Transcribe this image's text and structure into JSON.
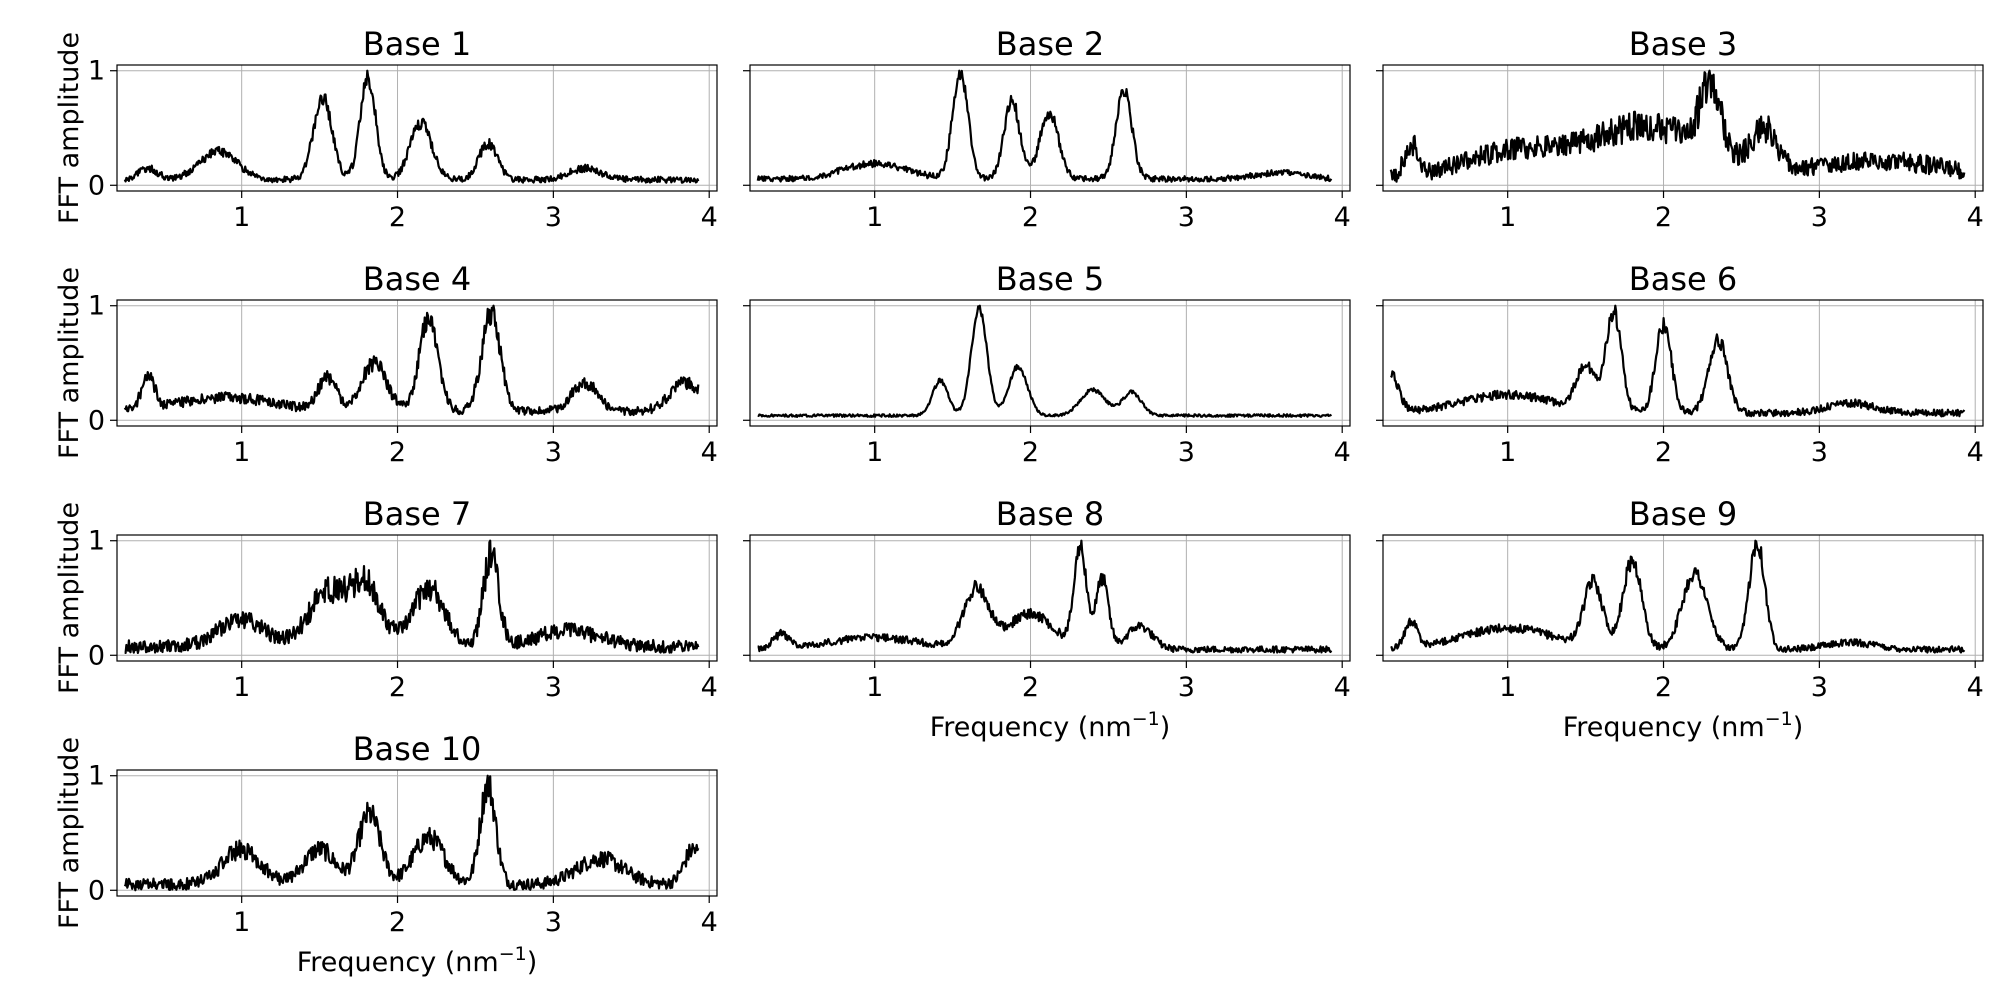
{
  "figure": {
    "x_axis_label_prefix": "Frequency (nm",
    "x_axis_label_sup": "−1",
    "x_axis_label_suffix": ")",
    "y_axis_label": "FFT amplitude"
  },
  "chart_data": [
    {
      "type": "line",
      "title": "Base 1",
      "xlim": [
        0.2,
        4.05
      ],
      "ylim": [
        -0.05,
        1.05
      ],
      "xticks": [
        1,
        2,
        3,
        4
      ],
      "yticks": [
        0,
        1
      ],
      "grid": true,
      "show_ylabel": true,
      "show_xlabel": false,
      "peaks": [
        [
          0.4,
          0.1,
          0.06
        ],
        [
          0.85,
          0.25,
          0.12
        ],
        [
          1.52,
          0.72,
          0.06
        ],
        [
          1.81,
          0.9,
          0.05
        ],
        [
          2.15,
          0.5,
          0.07
        ],
        [
          2.58,
          0.32,
          0.06
        ],
        [
          3.2,
          0.1,
          0.1
        ]
      ],
      "baseline": 0.05,
      "noise": 0.12,
      "seed": 1
    },
    {
      "type": "line",
      "title": "Base 2",
      "xlim": [
        0.2,
        4.05
      ],
      "ylim": [
        -0.05,
        1.05
      ],
      "xticks": [
        1,
        2,
        3,
        4
      ],
      "yticks": [
        0,
        1
      ],
      "grid": true,
      "show_ylabel": false,
      "show_xlabel": false,
      "peaks": [
        [
          1.0,
          0.12,
          0.2
        ],
        [
          1.55,
          0.82,
          0.05
        ],
        [
          1.88,
          0.62,
          0.05
        ],
        [
          2.12,
          0.52,
          0.06
        ],
        [
          2.6,
          0.7,
          0.05
        ],
        [
          3.6,
          0.05,
          0.15
        ]
      ],
      "baseline": 0.05,
      "noise": 0.1,
      "seed": 2
    },
    {
      "type": "line",
      "title": "Base 3",
      "xlim": [
        0.2,
        4.05
      ],
      "ylim": [
        -0.05,
        1.05
      ],
      "xticks": [
        1,
        2,
        3,
        4
      ],
      "yticks": [
        0,
        1
      ],
      "grid": true,
      "show_ylabel": false,
      "show_xlabel": false,
      "peaks": [
        [
          0.38,
          0.35,
          0.04
        ],
        [
          1.0,
          0.25,
          0.3
        ],
        [
          1.9,
          0.55,
          0.4
        ],
        [
          2.3,
          0.75,
          0.06
        ],
        [
          2.65,
          0.4,
          0.08
        ],
        [
          3.4,
          0.18,
          0.4
        ]
      ],
      "baseline": 0.08,
      "noise": 0.32,
      "seed": 3
    },
    {
      "type": "line",
      "title": "Base 4",
      "xlim": [
        0.2,
        4.05
      ],
      "ylim": [
        -0.05,
        1.05
      ],
      "xticks": [
        1,
        2,
        3,
        4
      ],
      "yticks": [
        0,
        1
      ],
      "grid": true,
      "show_ylabel": true,
      "show_xlabel": false,
      "peaks": [
        [
          0.4,
          0.3,
          0.04
        ],
        [
          0.9,
          0.12,
          0.3
        ],
        [
          1.55,
          0.28,
          0.06
        ],
        [
          1.85,
          0.42,
          0.08
        ],
        [
          2.2,
          0.82,
          0.06
        ],
        [
          2.6,
          0.85,
          0.06
        ],
        [
          3.2,
          0.25,
          0.08
        ],
        [
          3.85,
          0.25,
          0.1
        ]
      ],
      "baseline": 0.08,
      "noise": 0.16,
      "seed": 4
    },
    {
      "type": "line",
      "title": "Base 5",
      "xlim": [
        0.2,
        4.05
      ],
      "ylim": [
        -0.05,
        1.05
      ],
      "xticks": [
        1,
        2,
        3,
        4
      ],
      "yticks": [
        0,
        1
      ],
      "grid": true,
      "show_ylabel": false,
      "show_xlabel": false,
      "peaks": [
        [
          1.42,
          0.3,
          0.05
        ],
        [
          1.67,
          0.92,
          0.05
        ],
        [
          1.92,
          0.42,
          0.06
        ],
        [
          2.4,
          0.22,
          0.08
        ],
        [
          2.65,
          0.2,
          0.06
        ]
      ],
      "baseline": 0.04,
      "noise": 0.05,
      "seed": 5
    },
    {
      "type": "line",
      "title": "Base 6",
      "xlim": [
        0.2,
        4.05
      ],
      "ylim": [
        -0.05,
        1.05
      ],
      "xticks": [
        1,
        2,
        3,
        4
      ],
      "yticks": [
        0,
        1
      ],
      "grid": true,
      "show_ylabel": false,
      "show_xlabel": false,
      "peaks": [
        [
          0.25,
          0.32,
          0.05
        ],
        [
          1.0,
          0.15,
          0.3
        ],
        [
          1.5,
          0.35,
          0.06
        ],
        [
          1.68,
          0.82,
          0.05
        ],
        [
          2.0,
          0.72,
          0.05
        ],
        [
          2.35,
          0.6,
          0.06
        ],
        [
          3.2,
          0.08,
          0.15
        ]
      ],
      "baseline": 0.06,
      "noise": 0.12,
      "seed": 6
    },
    {
      "type": "line",
      "title": "Base 7",
      "xlim": [
        0.2,
        4.05
      ],
      "ylim": [
        -0.05,
        1.05
      ],
      "xticks": [
        1,
        2,
        3,
        4
      ],
      "yticks": [
        0,
        1
      ],
      "grid": true,
      "show_ylabel": true,
      "show_xlabel": false,
      "peaks": [
        [
          1.0,
          0.25,
          0.15
        ],
        [
          1.55,
          0.5,
          0.12
        ],
        [
          1.8,
          0.55,
          0.1
        ],
        [
          2.2,
          0.55,
          0.1
        ],
        [
          2.6,
          0.85,
          0.05
        ],
        [
          3.1,
          0.15,
          0.2
        ]
      ],
      "baseline": 0.08,
      "noise": 0.25,
      "seed": 7
    },
    {
      "type": "line",
      "title": "Base 8",
      "xlim": [
        0.2,
        4.05
      ],
      "ylim": [
        -0.05,
        1.05
      ],
      "xticks": [
        1,
        2,
        3,
        4
      ],
      "yticks": [
        0,
        1
      ],
      "grid": true,
      "show_ylabel": false,
      "show_xlabel": true,
      "peaks": [
        [
          0.4,
          0.12,
          0.05
        ],
        [
          1.0,
          0.1,
          0.3
        ],
        [
          1.65,
          0.5,
          0.08
        ],
        [
          2.0,
          0.3,
          0.15
        ],
        [
          2.32,
          0.85,
          0.04
        ],
        [
          2.46,
          0.6,
          0.04
        ],
        [
          2.7,
          0.2,
          0.08
        ]
      ],
      "baseline": 0.05,
      "noise": 0.12,
      "seed": 8
    },
    {
      "type": "line",
      "title": "Base 9",
      "xlim": [
        0.2,
        4.05
      ],
      "ylim": [
        -0.05,
        1.05
      ],
      "xticks": [
        1,
        2,
        3,
        4
      ],
      "yticks": [
        0,
        1
      ],
      "grid": true,
      "show_ylabel": false,
      "show_xlabel": true,
      "peaks": [
        [
          0.38,
          0.22,
          0.04
        ],
        [
          1.0,
          0.18,
          0.3
        ],
        [
          1.55,
          0.55,
          0.06
        ],
        [
          1.8,
          0.75,
          0.06
        ],
        [
          2.2,
          0.65,
          0.08
        ],
        [
          2.6,
          0.92,
          0.05
        ],
        [
          3.2,
          0.06,
          0.15
        ]
      ],
      "baseline": 0.05,
      "noise": 0.12,
      "seed": 9
    },
    {
      "type": "line",
      "title": "Base 10",
      "xlim": [
        0.2,
        4.05
      ],
      "ylim": [
        -0.05,
        1.05
      ],
      "xticks": [
        1,
        2,
        3,
        4
      ],
      "yticks": [
        0,
        1
      ],
      "grid": true,
      "show_ylabel": true,
      "show_xlabel": true,
      "peaks": [
        [
          1.0,
          0.3,
          0.12
        ],
        [
          1.5,
          0.3,
          0.1
        ],
        [
          1.82,
          0.6,
          0.07
        ],
        [
          2.2,
          0.4,
          0.1
        ],
        [
          2.58,
          0.85,
          0.05
        ],
        [
          3.3,
          0.22,
          0.15
        ],
        [
          3.9,
          0.3,
          0.06
        ]
      ],
      "baseline": 0.05,
      "noise": 0.22,
      "seed": 10
    }
  ]
}
